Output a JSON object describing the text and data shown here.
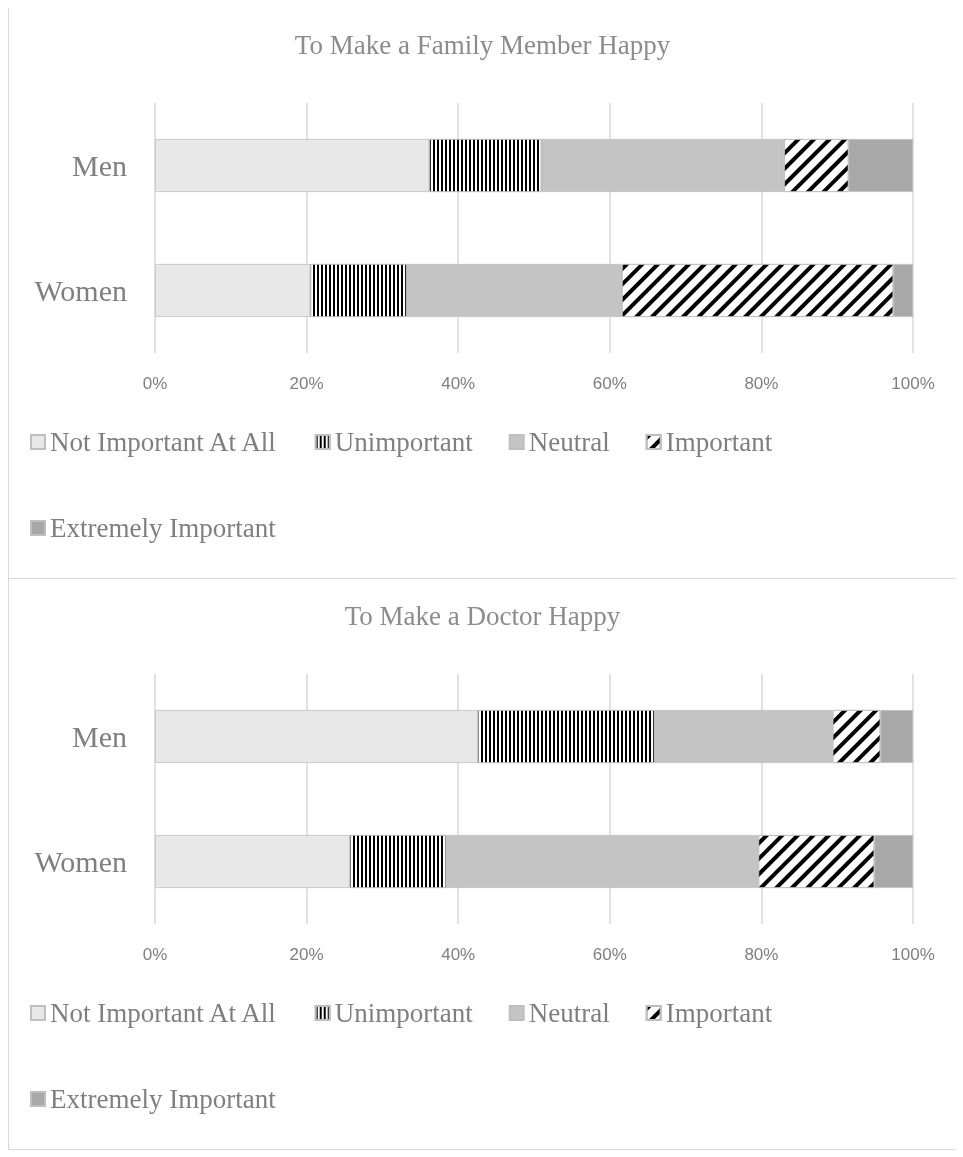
{
  "chart_data": [
    {
      "type": "bar",
      "orientation": "horizontal",
      "stacked": true,
      "title": "To Make a Family Member Happy",
      "categories": [
        "Men",
        "Women"
      ],
      "series": [
        {
          "name": "Not Important At All",
          "color": "#e8e8e8",
          "values": [
            36.2,
            20.5
          ]
        },
        {
          "name": "Unimportant",
          "color": "#ffffff",
          "values": [
            14.8,
            12.7
          ]
        },
        {
          "name": "Neutral",
          "color": "#c4c4c4",
          "values": [
            32.0,
            28.4
          ]
        },
        {
          "name": "Important",
          "color": "#ffffff",
          "values": [
            8.5,
            35.8
          ]
        },
        {
          "name": "Extremely Important",
          "color": "#a8a8a8",
          "values": [
            8.5,
            2.6
          ]
        }
      ],
      "xlim": [
        0,
        100
      ],
      "xticks": [
        {
          "value": 0,
          "label": "0%"
        },
        {
          "value": 20,
          "label": "20%"
        },
        {
          "value": 40,
          "label": "40%"
        },
        {
          "value": 60,
          "label": "60%"
        },
        {
          "value": 80,
          "label": "80%"
        },
        {
          "value": 100,
          "label": "100%"
        }
      ],
      "grid": "x",
      "legend": "bottom"
    },
    {
      "type": "bar",
      "orientation": "horizontal",
      "stacked": true,
      "title": "To Make a Doctor Happy",
      "categories": [
        "Men",
        "Women"
      ],
      "series": [
        {
          "name": "Not Important At All",
          "color": "#e8e8e8",
          "values": [
            42.6,
            25.7
          ]
        },
        {
          "name": "Unimportant",
          "color": "#ffffff",
          "values": [
            23.3,
            12.7
          ]
        },
        {
          "name": "Neutral",
          "color": "#c4c4c4",
          "values": [
            23.5,
            41.2
          ]
        },
        {
          "name": "Important",
          "color": "#ffffff",
          "values": [
            6.3,
            15.3
          ]
        },
        {
          "name": "Extremely Important",
          "color": "#a8a8a8",
          "values": [
            4.3,
            5.1
          ]
        }
      ],
      "xlim": [
        0,
        100
      ],
      "xticks": [
        {
          "value": 0,
          "label": "0%"
        },
        {
          "value": 20,
          "label": "20%"
        },
        {
          "value": 40,
          "label": "40%"
        },
        {
          "value": 60,
          "label": "60%"
        },
        {
          "value": 80,
          "label": "80%"
        },
        {
          "value": 100,
          "label": "100%"
        }
      ],
      "grid": "x",
      "legend": "bottom"
    }
  ]
}
